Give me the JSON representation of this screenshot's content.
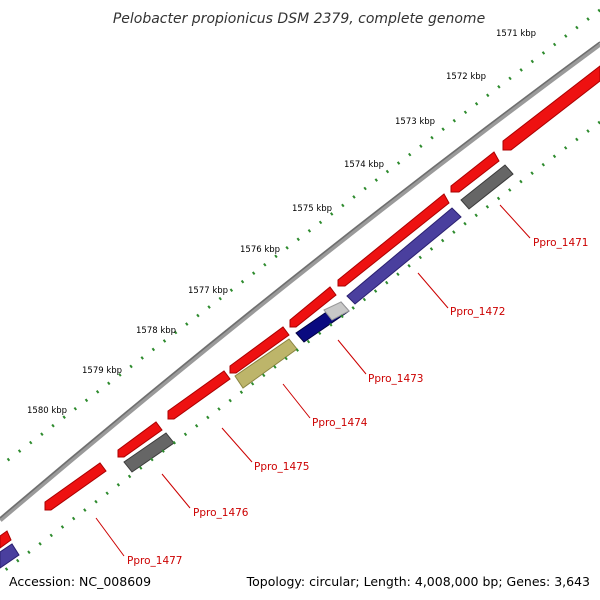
{
  "title": "Pelobacter propionicus DSM 2379, complete genome",
  "footer": {
    "accession": "Accession: NC_008609",
    "summary": "Topology: circular; Length: 4,008,000 bp; Genes: 3,643"
  },
  "colors": {
    "backbone": "#7a7a7a",
    "tick": "#2e8b2e",
    "label": "#cc0000",
    "leader": "#cc0000",
    "feature_red": "#ee1111",
    "feature_gray": "#666666",
    "feature_navy": "#0a0a80",
    "feature_purple": "#4a3f9e",
    "feature_olive": "#bdb56a",
    "feature_silver": "#c8c8c8"
  },
  "ruler": [
    {
      "label": "1571 kbp"
    },
    {
      "label": "1572 kbp"
    },
    {
      "label": "1573 kbp"
    },
    {
      "label": "1574 kbp"
    },
    {
      "label": "1575 kbp"
    },
    {
      "label": "1576 kbp"
    },
    {
      "label": "1577 kbp"
    },
    {
      "label": "1578 kbp"
    },
    {
      "label": "1579 kbp"
    },
    {
      "label": "1580 kbp"
    }
  ],
  "labels": {
    "l1": "Ppro_1471",
    "l2": "Ppro_1472",
    "l3": "Ppro_1473",
    "l4": "Ppro_1474",
    "l5": "Ppro_1475",
    "l6": "Ppro_1476",
    "l7": "Ppro_1477"
  }
}
